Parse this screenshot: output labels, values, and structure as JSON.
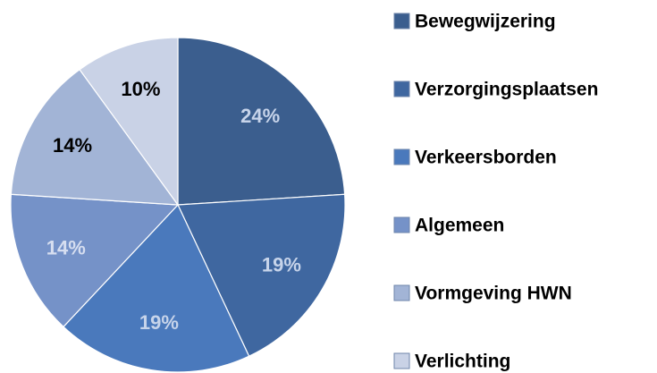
{
  "chart_data": {
    "type": "pie",
    "categories": [
      "Bewegwijzering",
      "Verzorgingsplaatsen",
      "Verkeersborden",
      "Algemeen",
      "Vormgeving HWN",
      "Verlichting"
    ],
    "values": [
      24,
      19,
      19,
      14,
      14,
      10
    ],
    "colors": [
      "#3b5e8e",
      "#3f67a0",
      "#4a79bc",
      "#7592c8",
      "#a2b4d6",
      "#c9d2e6"
    ],
    "label_colors": [
      "#c7d4ea",
      "#c7d4ea",
      "#c7d4ea",
      "#d6def0",
      "#000000",
      "#000000"
    ],
    "legend": "right"
  }
}
